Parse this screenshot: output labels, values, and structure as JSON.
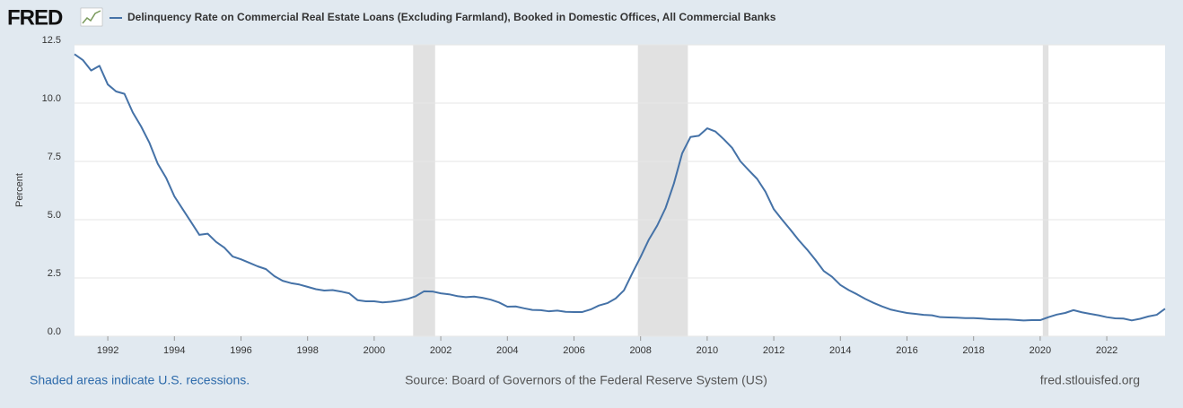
{
  "header": {
    "logo": "FRED"
  },
  "chart_data": {
    "type": "line",
    "series": [
      {
        "name": "Delinquency Rate on Commercial Real Estate Loans (Excluding Farmland), Booked in Domestic Offices, All Commercial Banks",
        "color": "#4572a7",
        "values": [
          12.1,
          11.85,
          11.4,
          11.6,
          10.8,
          10.5,
          10.4,
          9.6,
          9.0,
          8.3,
          7.4,
          6.8,
          6.0,
          5.45,
          4.9,
          4.35,
          4.4,
          4.05,
          3.8,
          3.42,
          3.3,
          3.15,
          3.0,
          2.88,
          2.58,
          2.38,
          2.28,
          2.22,
          2.12,
          2.02,
          1.96,
          1.98,
          1.92,
          1.84,
          1.55,
          1.5,
          1.5,
          1.45,
          1.48,
          1.53,
          1.6,
          1.72,
          1.93,
          1.92,
          1.84,
          1.8,
          1.72,
          1.68,
          1.7,
          1.65,
          1.57,
          1.45,
          1.27,
          1.28,
          1.2,
          1.13,
          1.12,
          1.07,
          1.1,
          1.05,
          1.04,
          1.04,
          1.15,
          1.32,
          1.42,
          1.62,
          1.97,
          2.7,
          3.4,
          4.15,
          4.75,
          5.5,
          6.55,
          7.85,
          8.55,
          8.6,
          8.92,
          8.78,
          8.45,
          8.08,
          7.5,
          7.12,
          6.75,
          6.2,
          5.45,
          5.0,
          4.57,
          4.12,
          3.72,
          3.28,
          2.8,
          2.55,
          2.2,
          1.98,
          1.8,
          1.6,
          1.43,
          1.28,
          1.15,
          1.07,
          1.0,
          0.96,
          0.92,
          0.9,
          0.82,
          0.81,
          0.8,
          0.78,
          0.78,
          0.76,
          0.73,
          0.72,
          0.72,
          0.7,
          0.68,
          0.69,
          0.69,
          0.82,
          0.93,
          1.0,
          1.12,
          1.03,
          0.96,
          0.9,
          0.82,
          0.77,
          0.76,
          0.68,
          0.75,
          0.85,
          0.92,
          1.18
        ]
      }
    ],
    "x": [
      1991,
      1991.25,
      1991.5,
      1991.75,
      1992,
      1992.25,
      1992.5,
      1992.75,
      1993,
      1993.25,
      1993.5,
      1993.75,
      1994,
      1994.25,
      1994.5,
      1994.75,
      1995,
      1995.25,
      1995.5,
      1995.75,
      1996,
      1996.25,
      1996.5,
      1996.75,
      1997,
      1997.25,
      1997.5,
      1997.75,
      1998,
      1998.25,
      1998.5,
      1998.75,
      1999,
      1999.25,
      1999.5,
      1999.75,
      2000,
      2000.25,
      2000.5,
      2000.75,
      2001,
      2001.25,
      2001.5,
      2001.75,
      2002,
      2002.25,
      2002.5,
      2002.75,
      2003,
      2003.25,
      2003.5,
      2003.75,
      2004,
      2004.25,
      2004.5,
      2004.75,
      2005,
      2005.25,
      2005.5,
      2005.75,
      2006,
      2006.25,
      2006.5,
      2006.75,
      2007,
      2007.25,
      2007.5,
      2007.75,
      2008,
      2008.25,
      2008.5,
      2008.75,
      2009,
      2009.25,
      2009.5,
      2009.75,
      2010,
      2010.25,
      2010.5,
      2010.75,
      2011,
      2011.25,
      2011.5,
      2011.75,
      2012,
      2012.25,
      2012.5,
      2012.75,
      2013,
      2013.25,
      2013.5,
      2013.75,
      2014,
      2014.25,
      2014.5,
      2014.75,
      2015,
      2015.25,
      2015.5,
      2015.75,
      2016,
      2016.25,
      2016.5,
      2016.75,
      2017,
      2017.25,
      2017.5,
      2017.75,
      2018,
      2018.25,
      2018.5,
      2018.75,
      2019,
      2019.25,
      2019.5,
      2019.75,
      2020,
      2020.25,
      2020.5,
      2020.75,
      2021,
      2021.25,
      2021.5,
      2021.75,
      2022,
      2022.25,
      2022.5,
      2022.75,
      2023,
      2023.25,
      2023.5,
      2023.75
    ],
    "xlim": [
      1991,
      2023.75
    ],
    "xticks": [
      1992,
      1994,
      1996,
      1998,
      2000,
      2002,
      2004,
      2006,
      2008,
      2010,
      2012,
      2014,
      2016,
      2018,
      2020,
      2022
    ],
    "ylim": [
      0,
      12.5
    ],
    "yticks": [
      {
        "value": 0,
        "label": "0.0"
      },
      2.5,
      {
        "value": 5,
        "label": "5.0"
      },
      7.5,
      {
        "value": 10,
        "label": "10.0"
      },
      12.5
    ],
    "y_label": "Percent",
    "grid": true,
    "recessions": [
      [
        2001.17,
        2001.83
      ],
      [
        2007.92,
        2009.42
      ],
      [
        2020.08,
        2020.25
      ]
    ],
    "recession_color": "#e1e1e1"
  },
  "footer": {
    "note": "Shaded areas indicate U.S. recessions.",
    "source": "Source: Board of Governors of the Federal Reserve System (US)",
    "url": "fred.stlouisfed.org"
  }
}
